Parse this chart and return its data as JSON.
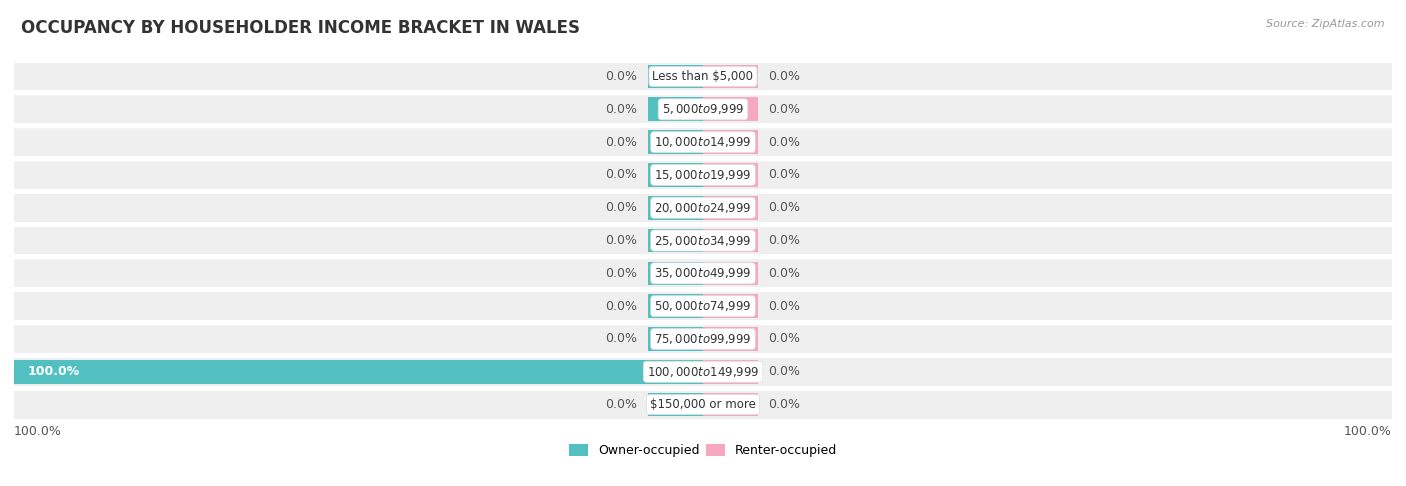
{
  "title": "OCCUPANCY BY HOUSEHOLDER INCOME BRACKET IN WALES",
  "source": "Source: ZipAtlas.com",
  "categories": [
    "Less than $5,000",
    "$5,000 to $9,999",
    "$10,000 to $14,999",
    "$15,000 to $19,999",
    "$20,000 to $24,999",
    "$25,000 to $34,999",
    "$35,000 to $49,999",
    "$50,000 to $74,999",
    "$75,000 to $99,999",
    "$100,000 to $149,999",
    "$150,000 or more"
  ],
  "owner_values": [
    0.0,
    0.0,
    0.0,
    0.0,
    0.0,
    0.0,
    0.0,
    0.0,
    0.0,
    100.0,
    0.0
  ],
  "renter_values": [
    0.0,
    0.0,
    0.0,
    0.0,
    0.0,
    0.0,
    0.0,
    0.0,
    0.0,
    0.0,
    0.0
  ],
  "owner_color": "#52c0c0",
  "renter_color": "#f5a8be",
  "owner_label": "Owner-occupied",
  "renter_label": "Renter-occupied",
  "row_bg_color": "#efefef",
  "row_gap_color": "#ffffff",
  "xlim": 100,
  "stub_pct": 8,
  "bar_height": 0.72,
  "title_fontsize": 12,
  "value_fontsize": 9,
  "cat_fontsize": 8.5
}
